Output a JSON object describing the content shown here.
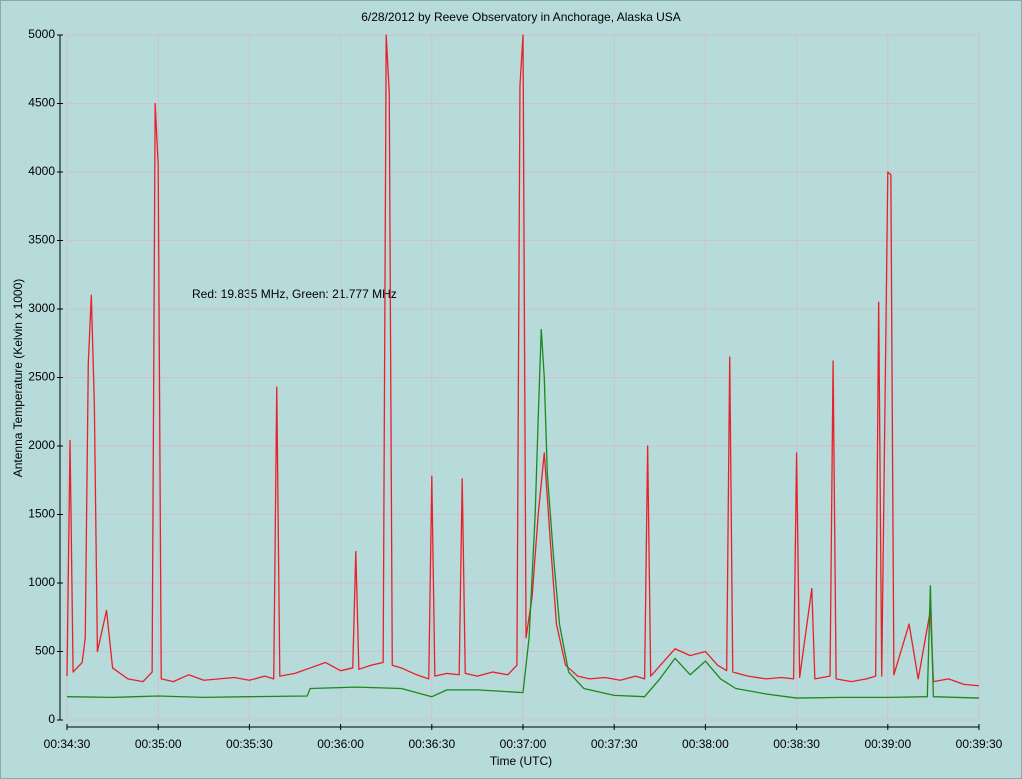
{
  "chart_data": {
    "type": "line",
    "title": "6/28/2012  by  Reeve Observatory  in  Anchorage, Alaska  USA",
    "annotation": "Red: 19.835 MHz, Green: 21.777 MHz",
    "xlabel": "Time (UTC)",
    "ylabel": "Antenna Temperature (Kelvin x 1000)",
    "xlim": [
      "00:34:30",
      "00:39:30"
    ],
    "xticks": [
      "00:34:30",
      "00:35:00",
      "00:35:30",
      "00:36:00",
      "00:36:30",
      "00:37:00",
      "00:37:30",
      "00:38:00",
      "00:38:30",
      "00:39:00",
      "00:39:30"
    ],
    "ylim": [
      0,
      5000
    ],
    "yticks": [
      0,
      500,
      1000,
      1500,
      2000,
      2500,
      3000,
      3500,
      4000,
      4500,
      5000
    ],
    "grid": true,
    "series": [
      {
        "color": "#e8202a",
        "x": [
          "00:34:30",
          "00:34:31",
          "00:34:32",
          "00:34:35",
          "00:34:36",
          "00:34:37",
          "00:34:38",
          "00:34:39",
          "00:34:40",
          "00:34:43",
          "00:34:45",
          "00:34:50",
          "00:34:55",
          "00:34:58",
          "00:34:59",
          "00:35:00",
          "00:35:01",
          "00:35:05",
          "00:35:10",
          "00:35:15",
          "00:35:20",
          "00:35:25",
          "00:35:30",
          "00:35:35",
          "00:35:38",
          "00:35:39",
          "00:35:40",
          "00:35:45",
          "00:35:50",
          "00:35:55",
          "00:36:00",
          "00:36:04",
          "00:36:05",
          "00:36:06",
          "00:36:10",
          "00:36:14",
          "00:36:15",
          "00:36:16",
          "00:36:17",
          "00:36:20",
          "00:36:25",
          "00:36:29",
          "00:36:30",
          "00:36:31",
          "00:36:35",
          "00:36:39",
          "00:36:40",
          "00:36:41",
          "00:36:45",
          "00:36:50",
          "00:36:55",
          "00:36:58",
          "00:36:59",
          "00:37:00",
          "00:37:01",
          "00:37:03",
          "00:37:05",
          "00:37:07",
          "00:37:09",
          "00:37:11",
          "00:37:14",
          "00:37:18",
          "00:37:22",
          "00:37:27",
          "00:37:32",
          "00:37:37",
          "00:37:40",
          "00:37:41",
          "00:37:42",
          "00:37:46",
          "00:37:50",
          "00:37:55",
          "00:38:00",
          "00:38:04",
          "00:38:07",
          "00:38:08",
          "00:38:09",
          "00:38:14",
          "00:38:20",
          "00:38:25",
          "00:38:29",
          "00:38:30",
          "00:38:31",
          "00:38:35",
          "00:38:36",
          "00:38:41",
          "00:38:42",
          "00:38:43",
          "00:38:48",
          "00:38:53",
          "00:38:56",
          "00:38:57",
          "00:38:58",
          "00:39:00",
          "00:39:01",
          "00:39:02",
          "00:39:07",
          "00:39:10",
          "00:39:14",
          "00:39:15",
          "00:39:20",
          "00:39:25",
          "00:39:30"
        ],
        "values": [
          320,
          2040,
          350,
          420,
          600,
          2600,
          3100,
          2300,
          500,
          800,
          380,
          300,
          280,
          350,
          4500,
          4050,
          300,
          280,
          330,
          290,
          300,
          310,
          290,
          320,
          300,
          2430,
          320,
          340,
          380,
          420,
          360,
          380,
          1230,
          370,
          400,
          420,
          5000,
          4580,
          400,
          380,
          330,
          300,
          1780,
          320,
          340,
          330,
          1760,
          340,
          320,
          350,
          330,
          400,
          4630,
          5000,
          600,
          900,
          1500,
          1950,
          1300,
          700,
          400,
          320,
          300,
          310,
          290,
          320,
          300,
          2000,
          320,
          420,
          520,
          470,
          500,
          400,
          360,
          2650,
          350,
          320,
          300,
          310,
          300,
          1950,
          310,
          960,
          300,
          320,
          2620,
          300,
          280,
          300,
          320,
          3050,
          320,
          4000,
          3980,
          330,
          700,
          300,
          800,
          280,
          300,
          260,
          250
        ]
      },
      {
        "color": "#1a8a1a",
        "x": [
          "00:34:30",
          "00:34:45",
          "00:35:00",
          "00:35:15",
          "00:35:30",
          "00:35:49",
          "00:35:50",
          "00:36:05",
          "00:36:20",
          "00:36:30",
          "00:36:35",
          "00:36:45",
          "00:37:00",
          "00:37:02",
          "00:37:04",
          "00:37:05",
          "00:37:06",
          "00:37:07",
          "00:37:08",
          "00:37:10",
          "00:37:12",
          "00:37:15",
          "00:37:20",
          "00:37:30",
          "00:37:40",
          "00:37:45",
          "00:37:50",
          "00:37:55",
          "00:38:00",
          "00:38:05",
          "00:38:10",
          "00:38:20",
          "00:38:30",
          "00:38:45",
          "00:39:00",
          "00:39:13",
          "00:39:14",
          "00:39:15",
          "00:39:30"
        ],
        "values": [
          170,
          165,
          175,
          165,
          170,
          175,
          230,
          240,
          230,
          170,
          220,
          220,
          200,
          600,
          1500,
          2200,
          2850,
          2500,
          1800,
          1200,
          700,
          350,
          230,
          180,
          170,
          300,
          450,
          330,
          430,
          300,
          230,
          190,
          160,
          165,
          165,
          170,
          980,
          170,
          160
        ]
      }
    ]
  }
}
